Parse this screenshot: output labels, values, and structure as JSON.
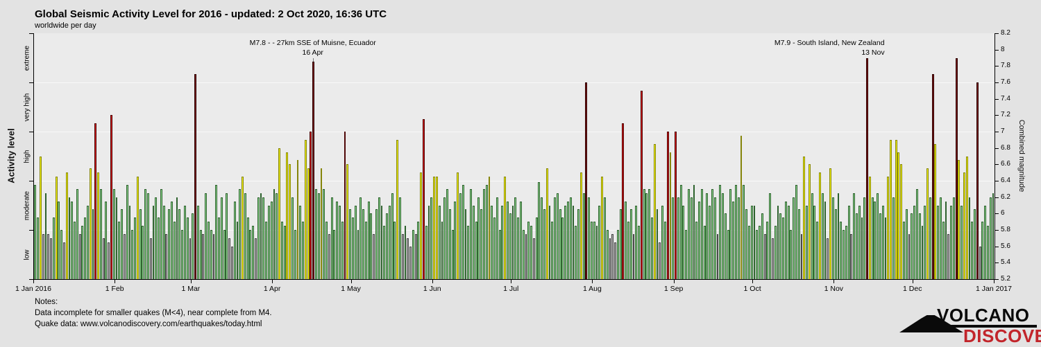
{
  "header": {
    "title": "Global Seismic Activity Level for 2016 - updated:  2 Oct 2020, 16:36 UTC",
    "subtitle": "worldwide per day"
  },
  "notes": {
    "line1": "Notes:",
    "line2": "Data incomplete for smaller quakes (M<4), near complete from M4.",
    "line3": "Quake data: www.volcanodiscovery.com/earthquakes/today.html"
  },
  "logo": {
    "top": "VOLCANO",
    "bottom": "DISCOVERY"
  },
  "chart_data": {
    "type": "bar",
    "title": "Global Seismic Activity Level for 2016",
    "subtitle": "worldwide per day",
    "x_axis": {
      "tick_labels": [
        "1 Jan 2016",
        "1 Feb",
        "1 Mar",
        "1 Apr",
        "1 May",
        "1 Jun",
        "1 Jul",
        "1 Aug",
        "1 Sep",
        "1 Oct",
        "1 Nov",
        "1 Dec",
        "1 Jan 2017"
      ]
    },
    "y_right": {
      "label": "Combined magnitude",
      "min": 5.2,
      "max": 8.2,
      "tick_step": 0.2
    },
    "y_left": {
      "label": "Activity level",
      "categories": [
        "low",
        "moderate",
        "high",
        "very high",
        "extreme"
      ]
    },
    "levels": [
      {
        "name": "low",
        "max": 5.8,
        "fill": "#b5b5b5",
        "stroke": "#474747"
      },
      {
        "name": "moderate",
        "max": 6.4,
        "fill": "#92d892",
        "stroke": "#2e622e"
      },
      {
        "name": "high",
        "max": 7.0,
        "fill": "#f8f80c",
        "stroke": "#85850a"
      },
      {
        "name": "very high",
        "max": 7.6,
        "fill": "#dc1414",
        "stroke": "#4f0606"
      },
      {
        "name": "extreme",
        "max": 8.2,
        "fill": "#7c1111",
        "stroke": "#2e0404"
      }
    ],
    "grid_magnitudes": [
      5.8,
      6.4,
      7.0,
      7.6
    ],
    "annotations": [
      {
        "line1": "M7.8 - - 27km SSE of Muisne, Ecuador",
        "line2": "16 Apr",
        "day": 106.5,
        "align": "center"
      },
      {
        "line1": "M7.9 - South Island, New Zealand",
        "line2": "13 Nov",
        "day": 317.5,
        "align": "right"
      }
    ],
    "months": [
      {
        "name": "Jan",
        "values": [
          6.35,
          5.95,
          6.7,
          5.75,
          6.25,
          5.75,
          5.7,
          5.95,
          6.45,
          6.15,
          5.8,
          5.65,
          6.5,
          6.2,
          6.15,
          5.9,
          6.3,
          5.75,
          5.85,
          5.95,
          6.1,
          6.55,
          6.05,
          7.1,
          6.5,
          6.3,
          5.7,
          6.15,
          5.65,
          7.2,
          6.3
        ]
      },
      {
        "name": "Feb",
        "values": [
          6.2,
          5.9,
          6.05,
          5.75,
          6.35,
          6.1,
          5.8,
          5.95,
          6.45,
          6.05,
          5.85,
          6.3,
          6.25,
          5.7,
          6.1,
          6.2,
          5.95,
          6.3,
          6.1,
          5.75,
          6.05,
          6.15,
          5.9,
          6.2,
          6.05,
          5.8,
          6.1,
          5.95,
          5.7
        ]
      },
      {
        "name": "Mar",
        "values": [
          6.0,
          7.7,
          6.1,
          5.8,
          5.75,
          6.25,
          5.9,
          5.8,
          5.75,
          6.35,
          5.95,
          6.2,
          5.8,
          6.25,
          5.7,
          5.6,
          6.15,
          5.9,
          6.3,
          6.45,
          6.25,
          5.95,
          5.8,
          5.85,
          5.7,
          6.2,
          6.25,
          6.2,
          5.9,
          6.1,
          6.15
        ]
      },
      {
        "name": "Apr",
        "values": [
          6.3,
          6.25,
          6.8,
          5.9,
          5.85,
          6.75,
          6.6,
          6.2,
          5.8,
          6.65,
          6.1,
          5.9,
          6.9,
          6.55,
          7.0,
          7.85,
          6.3,
          6.25,
          6.55,
          6.3,
          5.9,
          5.75,
          6.2,
          5.8,
          6.15,
          6.1,
          5.9,
          7.0,
          6.6,
          6.05
        ]
      },
      {
        "name": "May",
        "values": [
          5.95,
          6.1,
          5.8,
          6.2,
          6.05,
          5.9,
          6.15,
          6.0,
          5.75,
          6.05,
          6.2,
          6.1,
          5.85,
          6.0,
          6.1,
          6.25,
          5.9,
          6.9,
          6.2,
          5.75,
          5.85,
          5.7,
          5.6,
          5.8,
          5.75,
          5.9,
          6.5,
          7.15,
          5.85,
          6.1,
          6.2
        ]
      },
      {
        "name": "Jun",
        "values": [
          6.45,
          6.45,
          6.1,
          5.9,
          6.2,
          6.3,
          6.05,
          5.8,
          6.15,
          6.5,
          6.25,
          6.35,
          6.05,
          5.85,
          6.3,
          6.1,
          5.9,
          6.2,
          6.05,
          6.3,
          6.35,
          6.45,
          6.1,
          5.95,
          6.2,
          5.8,
          6.1,
          6.45,
          6.15,
          6.0
        ]
      },
      {
        "name": "Jul",
        "values": [
          6.1,
          6.2,
          5.95,
          6.15,
          5.8,
          5.75,
          5.9,
          5.85,
          5.7,
          5.95,
          6.38,
          6.2,
          6.05,
          6.55,
          6.1,
          5.9,
          6.2,
          6.25,
          6.05,
          5.95,
          6.1,
          6.15,
          6.2,
          6.1,
          5.85,
          6.05,
          6.5,
          6.25,
          7.6,
          6.2,
          5.9
        ]
      },
      {
        "name": "Aug",
        "values": [
          5.9,
          5.85,
          6.1,
          6.45,
          6.2,
          5.8,
          5.7,
          5.75,
          5.65,
          5.8,
          6.05,
          7.1,
          6.15,
          5.9,
          6.05,
          5.75,
          6.1,
          5.85,
          7.5,
          6.3,
          6.25,
          6.3,
          5.95,
          6.85,
          6.05,
          5.65,
          6.1,
          5.9,
          7.0,
          6.75,
          6.2
        ]
      },
      {
        "name": "Sep",
        "values": [
          7.0,
          6.2,
          6.35,
          6.1,
          5.8,
          6.3,
          6.2,
          6.35,
          5.9,
          6.15,
          6.3,
          5.85,
          6.25,
          6.1,
          6.3,
          6.2,
          5.75,
          6.35,
          6.25,
          6.0,
          5.8,
          6.3,
          6.15,
          6.35,
          6.2,
          6.95,
          6.35,
          6.05,
          5.85,
          6.1
        ]
      },
      {
        "name": "Oct",
        "values": [
          6.1,
          5.8,
          5.85,
          6.0,
          5.75,
          5.9,
          6.25,
          5.7,
          5.85,
          6.1,
          6.0,
          5.95,
          6.15,
          6.1,
          5.8,
          6.2,
          6.35,
          6.05,
          5.75,
          6.7,
          6.1,
          6.6,
          6.25,
          6.1,
          5.9,
          6.5,
          6.25,
          6.15,
          5.7,
          6.55,
          6.2
        ]
      },
      {
        "name": "Nov",
        "values": [
          6.05,
          6.25,
          5.9,
          5.8,
          5.85,
          6.1,
          5.75,
          6.25,
          6.0,
          6.1,
          5.95,
          6.2,
          7.9,
          6.45,
          6.2,
          6.15,
          6.25,
          6.0,
          6.1,
          5.95,
          6.45,
          6.9,
          6.2,
          6.9,
          6.75,
          6.6,
          5.9,
          6.05,
          5.75,
          6.0
        ]
      },
      {
        "name": "Dec",
        "values": [
          6.1,
          6.3,
          6.0,
          5.85,
          6.1,
          6.55,
          6.2,
          7.7,
          6.85,
          6.1,
          6.2,
          5.9,
          6.15,
          5.75,
          6.1,
          6.2,
          7.9,
          6.65,
          6.1,
          6.5,
          6.7,
          6.2,
          5.9,
          6.05,
          7.6,
          5.6,
          5.9,
          6.1,
          5.85,
          6.2,
          6.25
        ]
      }
    ]
  }
}
